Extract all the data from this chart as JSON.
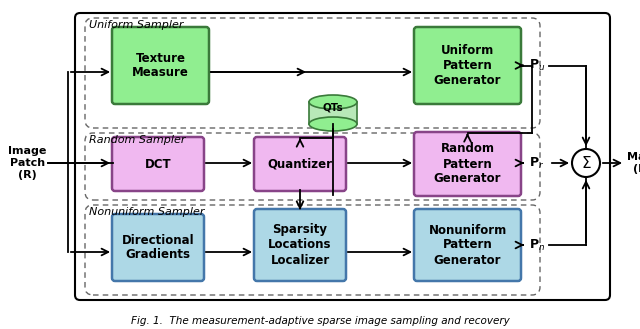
{
  "fig_width": 6.4,
  "fig_height": 3.29,
  "dpi": 100,
  "bg_color": "#ffffff",
  "blocks": {
    "texture": {
      "label": "Texture\nMeasure",
      "fc": "#90ee90",
      "ec": "#3a7a3a",
      "lw": 1.8
    },
    "upg": {
      "label": "Uniform\nPattern\nGenerator",
      "fc": "#90ee90",
      "ec": "#3a7a3a",
      "lw": 1.8
    },
    "dct": {
      "label": "DCT",
      "fc": "#f0b8f0",
      "ec": "#884488",
      "lw": 1.8
    },
    "quantizer": {
      "label": "Quantizer",
      "fc": "#f0b8f0",
      "ec": "#884488",
      "lw": 1.8
    },
    "rpg": {
      "label": "Random\nPattern\nGenerator",
      "fc": "#f0b8f0",
      "ec": "#884488",
      "lw": 1.8
    },
    "dirgrad": {
      "label": "Directional\nGradients",
      "fc": "#add8e6",
      "ec": "#4477aa",
      "lw": 1.8
    },
    "sparsity": {
      "label": "Sparsity\nLocations\nLocalizer",
      "fc": "#add8e6",
      "ec": "#4477aa",
      "lw": 1.8
    },
    "npg": {
      "label": "Nonuniform\nPattern\nGenerator",
      "fc": "#add8e6",
      "ec": "#4477aa",
      "lw": 1.8
    }
  },
  "green_fc": "#90ee90",
  "green_ec": "#3a7a3a",
  "pink_fc": "#f0b8f0",
  "pink_ec": "#884488",
  "blue_fc": "#add8e6",
  "blue_ec": "#4477aa",
  "caption": "Fig. 1.  The measurement-adaptive sparse image sampling and recovery"
}
